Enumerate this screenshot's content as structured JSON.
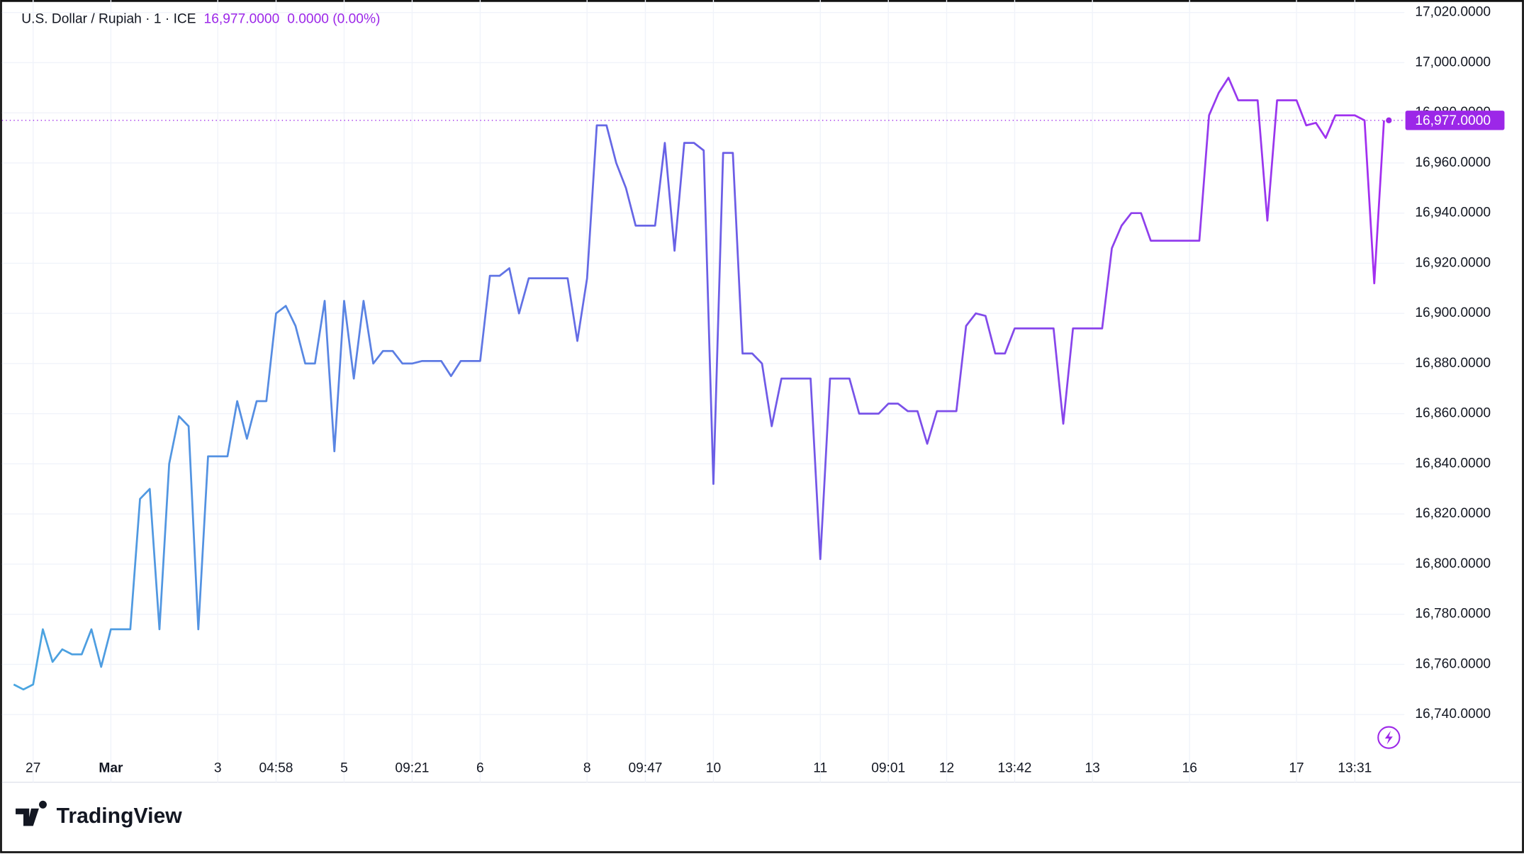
{
  "chart_data": {
    "type": "line",
    "title": "U.S. Dollar / Rupiah · 1 · ICE",
    "price": {
      "value": 16977,
      "label": "16,977.0000"
    },
    "change": "0.0000 (0.00%)",
    "logo": "TradingView",
    "categories": [
      null,
      null,
      "27",
      null,
      null,
      null,
      null,
      null,
      null,
      null,
      "Mar",
      null,
      null,
      null,
      null,
      null,
      null,
      null,
      null,
      null,
      null,
      "3",
      null,
      null,
      null,
      null,
      null,
      "04:58",
      null,
      null,
      null,
      null,
      null,
      null,
      "5",
      null,
      null,
      null,
      null,
      null,
      null,
      "09:21",
      null,
      null,
      null,
      null,
      null,
      null,
      "6",
      null,
      null,
      null,
      null,
      null,
      null,
      null,
      null,
      null,
      null,
      "8",
      null,
      null,
      null,
      null,
      null,
      "09:47",
      null,
      null,
      null,
      null,
      null,
      null,
      "10",
      null,
      null,
      null,
      null,
      null,
      null,
      null,
      null,
      null,
      null,
      "11",
      null,
      null,
      null,
      null,
      null,
      null,
      "09:01",
      null,
      null,
      null,
      null,
      null,
      "12",
      null,
      null,
      null,
      null,
      null,
      null,
      "13:42",
      null,
      null,
      null,
      null,
      null,
      null,
      null,
      "13",
      null,
      null,
      null,
      null,
      null,
      null,
      null,
      null,
      null,
      "16",
      null,
      null,
      null,
      null,
      null,
      null,
      null,
      null,
      null,
      null,
      "17",
      null,
      null,
      null,
      null,
      null,
      "13:31",
      null,
      null,
      null
    ],
    "series": [
      {
        "name": "U.S. Dollar / Rupiah",
        "color_gradient": [
          "#4aa6e0",
          "#6a5fe6",
          "#a32ef0"
        ],
        "values": [
          16752,
          16750,
          16752,
          16774,
          16761,
          16766,
          16764,
          16764,
          16774,
          16759,
          16774,
          16774,
          16774,
          16826,
          16830,
          16774,
          16840,
          16859,
          16855,
          16774,
          16843,
          16843,
          16843,
          16865,
          16850,
          16865,
          16865,
          16900,
          16903,
          16895,
          16880,
          16880,
          16905,
          16845,
          16905,
          16874,
          16905,
          16880,
          16885,
          16885,
          16880,
          16880,
          16881,
          16881,
          16881,
          16875,
          16881,
          16881,
          16881,
          16915,
          16915,
          16918,
          16900,
          16914,
          16914,
          16914,
          16914,
          16914,
          16889,
          16914,
          16975,
          16975,
          16960,
          16950,
          16935,
          16935,
          16935,
          16968,
          16925,
          16968,
          16968,
          16965,
          16832,
          16964,
          16964,
          16884,
          16884,
          16880,
          16855,
          16874,
          16874,
          16874,
          16874,
          16802,
          16874,
          16874,
          16874,
          16860,
          16860,
          16860,
          16864,
          16864,
          16861,
          16861,
          16848,
          16861,
          16861,
          16861,
          16895,
          16900,
          16899,
          16884,
          16884,
          16894,
          16894,
          16894,
          16894,
          16894,
          16856,
          16894,
          16894,
          16894,
          16894,
          16926,
          16935,
          16940,
          16940,
          16929,
          16929,
          16929,
          16929,
          16929,
          16929,
          16979,
          16988,
          16994,
          16985,
          16985,
          16985,
          16937,
          16985,
          16985,
          16985,
          16975,
          16976,
          16970,
          16979,
          16979,
          16979,
          16977,
          16912,
          16977
        ]
      }
    ],
    "ylim": [
      16713,
      17025
    ],
    "yticks": [
      {
        "value": 16740,
        "label": "16,740.0000"
      },
      {
        "value": 16760,
        "label": "16,760.0000"
      },
      {
        "value": 16780,
        "label": "16,780.0000"
      },
      {
        "value": 16800,
        "label": "16,800.0000"
      },
      {
        "value": 16820,
        "label": "16,820.0000"
      },
      {
        "value": 16840,
        "label": "16,840.0000"
      },
      {
        "value": 16860,
        "label": "16,860.0000"
      },
      {
        "value": 16880,
        "label": "16,880.0000"
      },
      {
        "value": 16900,
        "label": "16,900.0000"
      },
      {
        "value": 16920,
        "label": "16,920.0000"
      },
      {
        "value": 16940,
        "label": "16,940.0000"
      },
      {
        "value": 16960,
        "label": "16,960.0000"
      },
      {
        "value": 16980,
        "label": "16,980.0000"
      },
      {
        "value": 17000,
        "label": "17,000.0000"
      },
      {
        "value": 17020,
        "label": "17,020.0000"
      }
    ],
    "grid": true,
    "price_color": "#9c27e8"
  }
}
